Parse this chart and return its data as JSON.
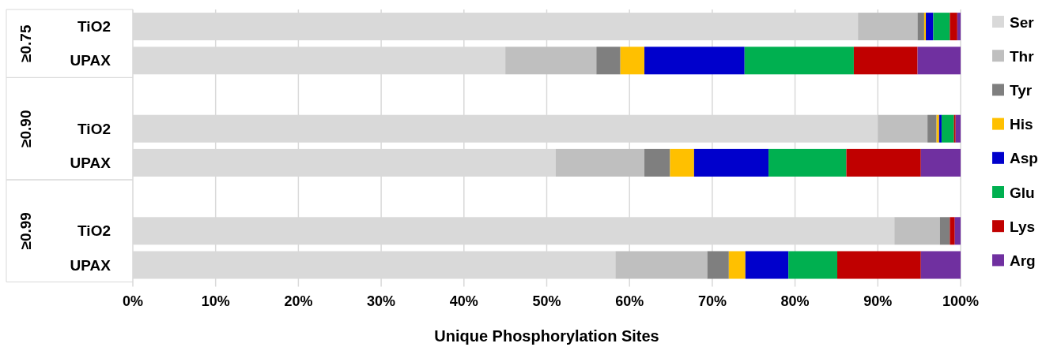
{
  "chart_data": {
    "type": "bar",
    "orientation": "horizontal",
    "stacked": true,
    "xlabel": "Unique Phosphorylation Sites",
    "categories": [
      "TiO2",
      "UPAX",
      "TiO2",
      "UPAX",
      "TiO2",
      "UPAX"
    ],
    "annotations": [
      "≥0.75",
      "≥0.90",
      "≥0.99"
    ],
    "series": [
      {
        "name": "Ser",
        "color": "#d9d9d9",
        "values": [
          87.6,
          45.0,
          90.0,
          51.1,
          92.0,
          58.3
        ]
      },
      {
        "name": "Thr",
        "color": "#bfbfbf",
        "values": [
          7.2,
          11.0,
          6.0,
          10.7,
          5.5,
          11.1
        ]
      },
      {
        "name": "Tyr",
        "color": "#7f7f7f",
        "values": [
          0.8,
          2.9,
          1.1,
          3.1,
          1.2,
          2.6
        ]
      },
      {
        "name": "His",
        "color": "#ffc000",
        "values": [
          0.2,
          2.9,
          0.3,
          2.9,
          0,
          2.0
        ]
      },
      {
        "name": "Asp",
        "color": "#0000cc",
        "values": [
          0.9,
          12.1,
          0.3,
          9.0,
          0,
          5.2
        ]
      },
      {
        "name": "Glu",
        "color": "#00b050",
        "values": [
          2.0,
          13.2,
          1.5,
          9.4,
          0,
          5.9
        ]
      },
      {
        "name": "Lys",
        "color": "#c00000",
        "values": [
          0.9,
          7.7,
          0.2,
          9.0,
          0.6,
          10.1
        ]
      },
      {
        "name": "Arg",
        "color": "#7030a0",
        "values": [
          0.4,
          5.2,
          0.6,
          4.8,
          0.7,
          4.8
        ]
      }
    ],
    "xlim": [
      0,
      100
    ],
    "xticks": [
      {
        "value": 0,
        "label": "0%"
      },
      {
        "value": 10,
        "label": "10%"
      },
      {
        "value": 20,
        "label": "20%"
      },
      {
        "value": 30,
        "label": "30%"
      },
      {
        "value": 40,
        "label": "40%"
      },
      {
        "value": 50,
        "label": "50%"
      },
      {
        "value": 60,
        "label": "60%"
      },
      {
        "value": 70,
        "label": "70%"
      },
      {
        "value": 80,
        "label": "80%"
      },
      {
        "value": 90,
        "label": "90%"
      },
      {
        "value": 100,
        "label": "100%"
      }
    ],
    "grid": "x",
    "legend": "right"
  }
}
